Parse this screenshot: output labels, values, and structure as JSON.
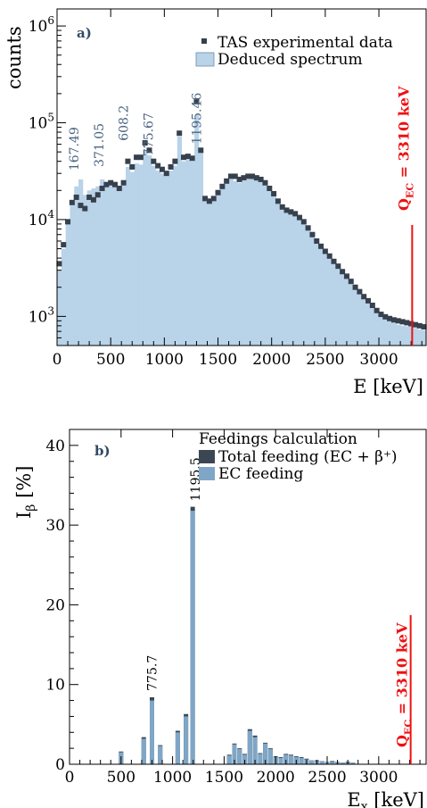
{
  "chart_data": [
    {
      "type": "bar",
      "panel_label": "a)",
      "ylabel": "counts",
      "xlabel": "E [keV]",
      "scale_y": "log",
      "xlim": [
        0,
        3440
      ],
      "ylim": [
        500,
        1500000
      ],
      "x_ticks": [
        "0",
        "500",
        "1000",
        "1500",
        "2000",
        "2500",
        "3000"
      ],
      "x_tick_values": [
        0,
        500,
        1000,
        1500,
        2000,
        2500,
        3000
      ],
      "y_ticks": [
        {
          "base": "10",
          "exp": "3",
          "value": 1000
        },
        {
          "base": "10",
          "exp": "4",
          "value": 10000
        },
        {
          "base": "10",
          "exp": "5",
          "value": 100000
        },
        {
          "base": "10",
          "exp": "6",
          "value": 1000000
        }
      ],
      "legend": [
        "TAS experimental data",
        "Deduced spectrum"
      ],
      "peak_labels": [
        {
          "text": "167.49",
          "x": 200,
          "y": 32000
        },
        {
          "text": "371.05",
          "x": 430,
          "y": 35000
        },
        {
          "text": "608.2",
          "x": 660,
          "y": 65000
        },
        {
          "text": "775.67",
          "x": 895,
          "y": 45000
        },
        {
          "text": "1195.46",
          "x": 1340,
          "y": 60000
        }
      ],
      "q_value": {
        "x": 3310,
        "label_main": "Q",
        "label_sub": "EC",
        "label_rest": " = 3310 keV"
      },
      "series": [
        {
          "name": "Deduced spectrum",
          "color": "#b9d3e9",
          "x": [
            0,
            40,
            80,
            120,
            160,
            200,
            240,
            280,
            320,
            360,
            400,
            440,
            480,
            520,
            560,
            600,
            640,
            680,
            720,
            760,
            800,
            840,
            880,
            920,
            960,
            1000,
            1040,
            1080,
            1120,
            1160,
            1200,
            1240,
            1280,
            1320,
            1360,
            1400,
            1440,
            1480,
            1520,
            1560,
            1600,
            1640,
            1680,
            1720,
            1760,
            1800,
            1840,
            1880,
            1920,
            1960,
            2000,
            2040,
            2080,
            2120,
            2160,
            2200,
            2240,
            2280,
            2320,
            2360,
            2400,
            2440,
            2480,
            2520,
            2560,
            2600,
            2640,
            2680,
            2720,
            2760,
            2800,
            2840,
            2880,
            2920,
            2960,
            3000,
            3040,
            3080,
            3120,
            3160,
            3200,
            3240,
            3280,
            3320,
            3360,
            3400
          ],
          "values": [
            3000,
            5000,
            9000,
            14000,
            22000,
            26000,
            18000,
            20000,
            21000,
            22000,
            26000,
            24000,
            23000,
            22000,
            22000,
            23000,
            35000,
            31000,
            38000,
            37000,
            52000,
            46000,
            36000,
            32000,
            30000,
            28000,
            32000,
            36000,
            72000,
            40000,
            42000,
            40000,
            120000,
            52000,
            16000,
            16000,
            17000,
            19000,
            21000,
            24000,
            26000,
            25000,
            24000,
            25000,
            26000,
            27000,
            26000,
            25000,
            23000,
            20000,
            18000,
            15000,
            13000,
            12000,
            11500,
            11000,
            10000,
            9000,
            8000,
            6800,
            5900,
            5200,
            4600,
            4100,
            3600,
            3200,
            2800,
            2500,
            2200,
            1950,
            1750,
            1550,
            1400,
            1260,
            1120,
            1010,
            960,
            900,
            860,
            820,
            800,
            790,
            780,
            760,
            730,
            720
          ]
        },
        {
          "name": "TAS experimental data",
          "color": "#37414d",
          "x": [
            0,
            40,
            80,
            120,
            160,
            200,
            240,
            280,
            320,
            360,
            400,
            440,
            480,
            520,
            560,
            600,
            640,
            680,
            720,
            760,
            800,
            840,
            880,
            920,
            960,
            1000,
            1040,
            1080,
            1120,
            1160,
            1200,
            1240,
            1280,
            1320,
            1360,
            1400,
            1440,
            1480,
            1520,
            1560,
            1600,
            1640,
            1680,
            1720,
            1760,
            1800,
            1840,
            1880,
            1920,
            1960,
            2000,
            2040,
            2080,
            2120,
            2160,
            2200,
            2240,
            2280,
            2320,
            2360,
            2400,
            2440,
            2480,
            2520,
            2560,
            2600,
            2640,
            2680,
            2720,
            2760,
            2800,
            2840,
            2880,
            2920,
            2960,
            3000,
            3040,
            3080,
            3120,
            3160,
            3200,
            3240,
            3280,
            3320,
            3360,
            3400
          ],
          "values": [
            3500,
            5500,
            9500,
            15000,
            17000,
            14000,
            13000,
            17000,
            16000,
            18000,
            21000,
            23000,
            24000,
            23000,
            21000,
            24000,
            40000,
            35000,
            44000,
            44000,
            62000,
            52000,
            40000,
            36000,
            33000,
            30000,
            35000,
            40000,
            78000,
            44000,
            45000,
            43000,
            165000,
            52000,
            16500,
            15500,
            16500,
            19000,
            22000,
            25000,
            28000,
            28000,
            26000,
            27000,
            28000,
            28000,
            27000,
            26000,
            24000,
            21000,
            18500,
            15500,
            13500,
            12500,
            12000,
            11500,
            10500,
            9500,
            8200,
            7000,
            6000,
            5300,
            4700,
            4200,
            3700,
            3300,
            2900,
            2600,
            2300,
            2000,
            1800,
            1600,
            1450,
            1300,
            1150,
            1050,
            990,
            950,
            920,
            900,
            880,
            860,
            840,
            820,
            800,
            780
          ]
        }
      ]
    },
    {
      "type": "bar",
      "panel_label": "b)",
      "ylabel_main": "I",
      "ylabel_sub": "β",
      "ylabel_rest": " [%]",
      "xlabel_main": "E",
      "xlabel_sub": "x",
      "xlabel_rest": " [keV]",
      "xlim": [
        0,
        3460
      ],
      "ylim": [
        0,
        42
      ],
      "x_ticks": [
        "0",
        "500",
        "1000",
        "1500",
        "2000",
        "2500",
        "3000"
      ],
      "x_tick_values": [
        0,
        500,
        1000,
        1500,
        2000,
        2500,
        3000
      ],
      "y_ticks": [
        "0",
        "10",
        "20",
        "30",
        "40"
      ],
      "y_tick_values": [
        0,
        10,
        20,
        30,
        40
      ],
      "legend_title": "Feedings calculation",
      "legend": [
        "Total feeding (EC + β⁺)",
        "EC feeding"
      ],
      "peak_labels": [
        {
          "text": "775.7",
          "x": 800,
          "y": 9.2
        },
        {
          "text": "1195.5",
          "x": 1220,
          "y": 33
        }
      ],
      "q_value": {
        "x": 3310,
        "label_main": "Q",
        "label_sub": "EC",
        "label_rest": " = 3310 keV"
      },
      "series": [
        {
          "name": "Total feeding (EC + β⁺)",
          "color": "#3b4653",
          "x": [
            500,
            720,
            800,
            880,
            1050,
            1130,
            1195,
            1550,
            1600,
            1650,
            1700,
            1750,
            1800,
            1850,
            1900,
            1950,
            2000,
            2050,
            2100,
            2150,
            2200,
            2250,
            2300,
            2350,
            2400,
            2450,
            2500,
            2550,
            2600,
            2650,
            2700,
            2750
          ],
          "values": [
            1.6,
            3.4,
            8.4,
            2.4,
            4.2,
            6.3,
            32.3,
            1.2,
            2.6,
            2.0,
            1.3,
            4.4,
            3.6,
            1.4,
            2.7,
            2.0,
            1.0,
            0.9,
            1.3,
            1.2,
            1.0,
            0.9,
            0.7,
            0.5,
            0.5,
            0.4,
            0.3,
            0.4,
            0.3,
            0.2,
            0.3,
            0.2
          ]
        },
        {
          "name": "EC feeding",
          "color": "#7fa6c6",
          "x": [
            500,
            720,
            800,
            880,
            1050,
            1130,
            1195,
            1550,
            1600,
            1650,
            1700,
            1750,
            1800,
            1850,
            1900,
            1950,
            2000,
            2050,
            2100,
            2150,
            2200,
            2250,
            2300,
            2350,
            2400,
            2450,
            2500,
            2550,
            2600,
            2650,
            2700,
            2750
          ],
          "values": [
            1.5,
            3.2,
            8.0,
            2.3,
            4.0,
            6.0,
            31.8,
            1.1,
            2.5,
            1.9,
            1.2,
            4.2,
            3.4,
            1.3,
            2.6,
            1.9,
            0.9,
            0.8,
            1.2,
            1.1,
            0.9,
            0.8,
            0.6,
            0.5,
            0.4,
            0.4,
            0.3,
            0.3,
            0.3,
            0.2,
            0.2,
            0.2
          ]
        }
      ]
    }
  ]
}
